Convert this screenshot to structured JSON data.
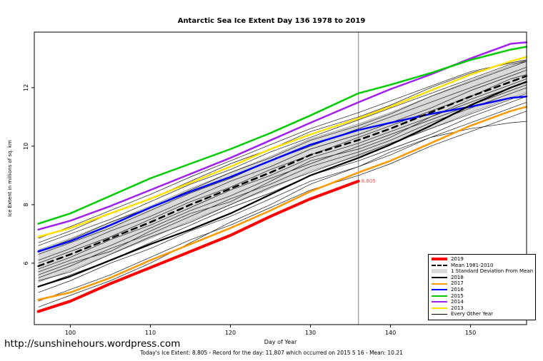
{
  "title": "Antarctic Sea Ice Extent Day 136 1978 to 2019",
  "footer": {
    "url": "http://sunshinehours.wordpress.com",
    "summary": "Today's Ice Extent: 8.805  - Record for the day: 11.807 which occurred on 2015 5 16  - Mean: 10.21"
  },
  "chart_data": {
    "type": "line",
    "title": "Antarctic Sea Ice Extent Day 136 1978 to 2019",
    "xlabel": "Day of Year",
    "ylabel": "Ice Extent in millions of sq. km",
    "xlim": [
      95.5,
      157
    ],
    "ylim": [
      3.9,
      13.9
    ],
    "xticks": [
      100,
      110,
      120,
      130,
      140,
      150
    ],
    "yticks": [
      6,
      8,
      10,
      12
    ],
    "grid": false,
    "legend_position": "bottom-right",
    "vline_x": 136,
    "annotation": {
      "x": 136,
      "y": 8.805,
      "label": "8.805",
      "color": "#ff4d4d"
    },
    "x": [
      96,
      100,
      105,
      110,
      115,
      120,
      125,
      130,
      136,
      140,
      145,
      150,
      155,
      157
    ],
    "band": {
      "name": "1 Standard Deviation From Mean",
      "color": "#d9d9d9",
      "edge_color": "#999999",
      "upper": [
        6.45,
        6.85,
        7.4,
        7.95,
        8.55,
        9.1,
        9.65,
        10.25,
        10.76,
        11.15,
        11.7,
        12.25,
        12.75,
        12.95
      ],
      "lower": [
        5.35,
        5.75,
        6.3,
        6.85,
        7.45,
        8.0,
        8.55,
        9.15,
        9.66,
        10.05,
        10.6,
        11.15,
        11.65,
        11.85
      ]
    },
    "series": [
      {
        "name": "2013",
        "color": "#ffe000",
        "width": 2.5,
        "values": [
          6.9,
          7.2,
          7.7,
          8.2,
          8.75,
          9.3,
          9.9,
          10.4,
          10.95,
          11.35,
          11.9,
          12.45,
          12.9,
          13.05
        ]
      },
      {
        "name": "2014",
        "color": "#a020f0",
        "width": 2.5,
        "values": [
          7.15,
          7.45,
          7.95,
          8.5,
          9.05,
          9.6,
          10.2,
          10.8,
          11.5,
          11.95,
          12.45,
          13.0,
          13.5,
          13.55
        ]
      },
      {
        "name": "2015",
        "color": "#00cc00",
        "width": 2.5,
        "values": [
          7.35,
          7.7,
          8.3,
          8.9,
          9.4,
          9.9,
          10.45,
          11.05,
          11.807,
          12.1,
          12.5,
          12.95,
          13.3,
          13.4
        ]
      },
      {
        "name": "2016",
        "color": "#0000ff",
        "width": 2.5,
        "values": [
          6.4,
          6.75,
          7.3,
          7.9,
          8.45,
          8.95,
          9.5,
          10.05,
          10.55,
          10.8,
          11.1,
          11.35,
          11.65,
          11.7
        ]
      },
      {
        "name": "2017",
        "color": "#ff9900",
        "width": 2.5,
        "values": [
          4.75,
          5.0,
          5.5,
          6.1,
          6.65,
          7.2,
          7.8,
          8.45,
          9.1,
          9.5,
          10.1,
          10.7,
          11.2,
          11.35
        ]
      },
      {
        "name": "2018",
        "color": "#000000",
        "width": 2.2,
        "values": [
          5.2,
          5.55,
          6.1,
          6.65,
          7.15,
          7.7,
          8.35,
          9.0,
          9.6,
          10.05,
          10.7,
          11.4,
          12.0,
          12.2
        ]
      },
      {
        "name": "Mean 1981-2010",
        "color": "#000000",
        "width": 2.5,
        "dash": "8,6",
        "values": [
          5.9,
          6.3,
          6.85,
          7.4,
          8.0,
          8.55,
          9.1,
          9.7,
          10.21,
          10.6,
          11.15,
          11.7,
          12.2,
          12.4
        ]
      },
      {
        "name": "2019",
        "color": "#ff0000",
        "width": 4,
        "values": [
          4.35,
          4.7,
          5.3,
          5.85,
          6.4,
          6.95,
          7.6,
          8.2,
          8.805,
          null,
          null,
          null,
          null,
          null
        ]
      }
    ],
    "other_years": [
      [
        4.7,
        5.1,
        5.6,
        6.2,
        6.8,
        7.3,
        7.9,
        8.5,
        9.0,
        9.4,
        10.0,
        10.5,
        11.0,
        11.2
      ],
      [
        5.0,
        5.4,
        6.0,
        6.5,
        7.1,
        7.6,
        8.2,
        8.8,
        9.3,
        9.7,
        10.3,
        10.8,
        11.3,
        11.5
      ],
      [
        5.2,
        5.6,
        6.1,
        6.7,
        7.3,
        7.9,
        8.4,
        9.0,
        9.5,
        9.9,
        10.4,
        11.0,
        11.5,
        11.7
      ],
      [
        5.4,
        5.7,
        6.3,
        6.9,
        7.4,
        8.0,
        8.6,
        9.1,
        9.7,
        10.1,
        10.6,
        11.1,
        11.6,
        11.8
      ],
      [
        5.5,
        5.9,
        6.5,
        7.0,
        7.6,
        8.2,
        8.7,
        9.3,
        9.8,
        10.2,
        10.8,
        11.3,
        11.8,
        12.0
      ],
      [
        5.7,
        6.1,
        6.6,
        7.2,
        7.8,
        8.3,
        8.9,
        9.4,
        10.0,
        10.4,
        10.9,
        11.4,
        11.9,
        12.1
      ],
      [
        5.8,
        6.2,
        6.8,
        7.3,
        7.9,
        8.5,
        9.0,
        9.6,
        10.1,
        10.5,
        11.0,
        11.6,
        12.1,
        12.3
      ],
      [
        6.0,
        6.4,
        6.9,
        7.5,
        8.1,
        8.6,
        9.2,
        9.7,
        10.3,
        10.7,
        11.2,
        11.7,
        12.3,
        12.45
      ],
      [
        6.1,
        6.5,
        7.1,
        7.6,
        8.2,
        8.8,
        9.3,
        9.9,
        10.4,
        10.8,
        11.3,
        11.9,
        12.4,
        12.6
      ],
      [
        6.3,
        6.7,
        7.2,
        7.8,
        8.4,
        8.9,
        9.5,
        10.0,
        10.6,
        11.0,
        11.5,
        12.0,
        12.5,
        12.7
      ],
      [
        6.4,
        6.8,
        7.4,
        7.9,
        8.5,
        9.1,
        9.6,
        10.2,
        10.7,
        11.1,
        11.7,
        12.2,
        12.7,
        12.9
      ],
      [
        6.6,
        7.0,
        7.5,
        8.1,
        8.7,
        9.2,
        9.8,
        10.3,
        10.9,
        11.3,
        11.8,
        12.3,
        12.8,
        12.9
      ],
      [
        6.7,
        7.1,
        7.7,
        8.2,
        8.8,
        9.4,
        9.9,
        10.5,
        11.0,
        11.4,
        12.0,
        12.5,
        12.85,
        12.95
      ],
      [
        6.85,
        7.25,
        7.8,
        8.35,
        8.95,
        9.5,
        10.05,
        10.6,
        11.15,
        11.55,
        12.05,
        12.55,
        12.85,
        12.95
      ],
      [
        4.5,
        4.9,
        5.4,
        6.0,
        6.7,
        7.4,
        8.0,
        8.7,
        9.3,
        9.8,
        10.3,
        10.6,
        10.8,
        10.85
      ],
      [
        5.6,
        6.0,
        6.4,
        7.1,
        7.7,
        8.1,
        8.8,
        9.5,
        9.9,
        10.3,
        11.0,
        11.5,
        12.0,
        12.2
      ]
    ],
    "legend": [
      {
        "label": "2019",
        "color": "#ff0000",
        "type": "line",
        "width": 4
      },
      {
        "label": "Mean 1981-2010",
        "color": "#000000",
        "type": "dashed",
        "width": 2
      },
      {
        "label": "1 Standard Deviation From Mean",
        "color": "#d9d9d9",
        "type": "band"
      },
      {
        "label": "2018",
        "color": "#000000",
        "type": "line",
        "width": 2
      },
      {
        "label": "2017",
        "color": "#ff9900",
        "type": "line",
        "width": 2
      },
      {
        "label": "2016",
        "color": "#0000ff",
        "type": "line",
        "width": 2
      },
      {
        "label": "2015",
        "color": "#00cc00",
        "type": "line",
        "width": 2
      },
      {
        "label": "2014",
        "color": "#a020f0",
        "type": "line",
        "width": 2
      },
      {
        "label": "2013",
        "color": "#ffe000",
        "type": "line",
        "width": 2
      },
      {
        "label": "Every Other Year",
        "color": "#000000",
        "type": "line",
        "width": 1
      }
    ]
  }
}
